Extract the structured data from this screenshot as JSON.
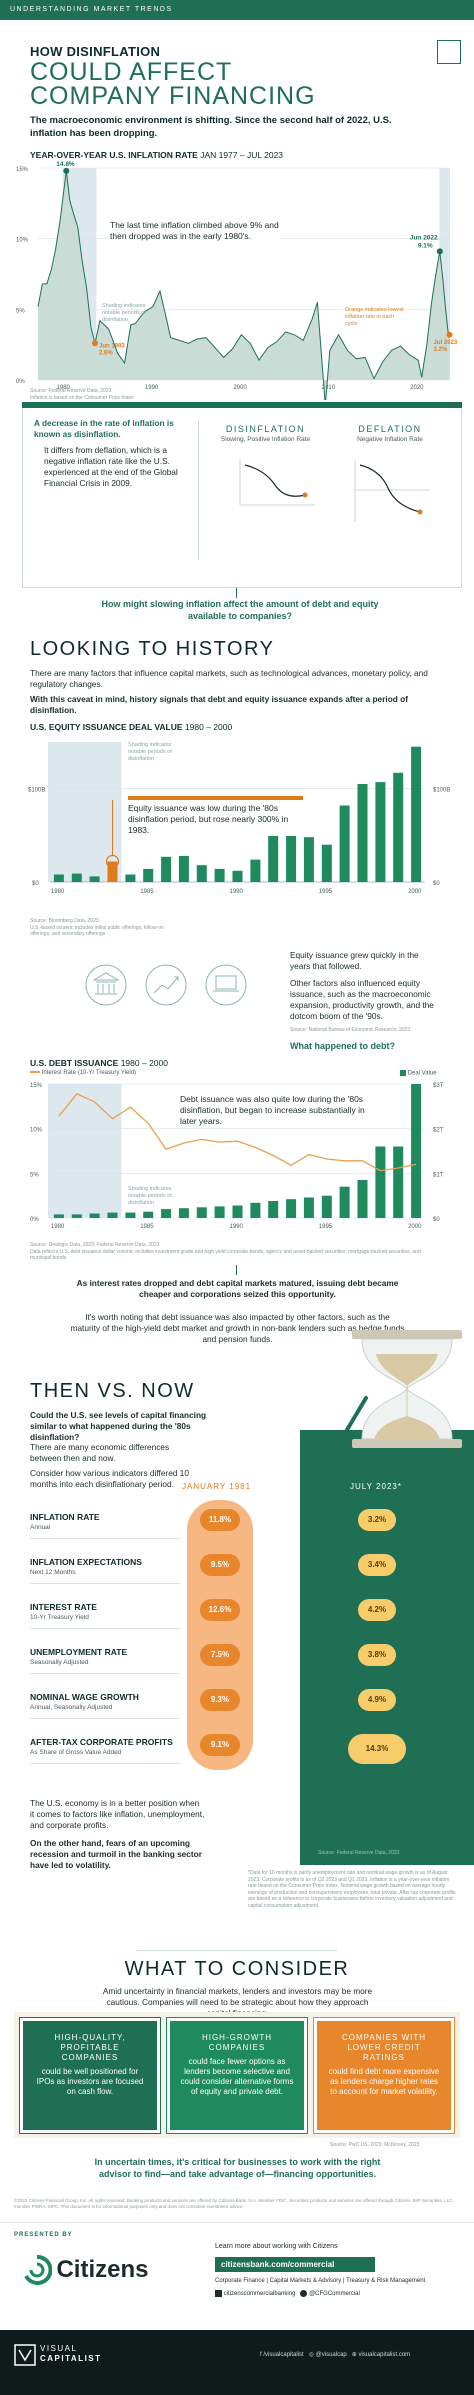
{
  "topbar": "UNDERSTANDING MARKET TRENDS",
  "hero": {
    "line1": "HOW DISINFLATION",
    "line2": "COULD AFFECT",
    "line3": "COMPANY FINANCING",
    "intro": "The macroeconomic environment is shifting. Since the second half of 2022, U.S. inflation has been dropping."
  },
  "inflation_chart": {
    "title": "YEAR-OVER-YEAR U.S. INFLATION RATE",
    "range": "JAN 1977 – JUL 2023",
    "y_ticks": [
      "15%",
      "10%",
      "5%",
      "0%"
    ],
    "x_ticks": [
      "1980",
      "1990",
      "2000",
      "2010",
      "2020"
    ],
    "mar1980_date": "Mar 1980",
    "mar1980_val": "14.8%",
    "jun1983_date": "Jun 1983",
    "jun1983_val": "2.6%",
    "jun2022_date": "Jun 2022",
    "jun2022_val": "9.1%",
    "jul2023_date": "Jul 2023",
    "jul2023_val": "3.2%",
    "callout": "The last time inflation climbed above 9% and then dropped was in the early 1980's.",
    "shade_note": "Shading indicates notable periods of disinflation",
    "orange_note": "Orange indicates lowest inflation rate in each cycle",
    "source": "Source: Federal Reserve Data, 2023",
    "source2": "Inflation is based on the Consumer Price Index"
  },
  "definition": {
    "lead": "A decrease in the rate of inflation is known as disinflation.",
    "body": "It differs from deflation, which is a negative inflation rate like the U.S. experienced at the end of the Global Financial Crisis in 2009.",
    "disinflation_label": "DISINFLATION",
    "disinflation_sub": "Slowing, Positive Inflation Rate",
    "deflation_label": "DEFLATION",
    "deflation_sub": "Negative Inflation Rate"
  },
  "question1": "How might slowing inflation affect the amount of debt and equity available to companies?",
  "history": {
    "title": "LOOKING TO HISTORY",
    "p1": "There are many factors that influence capital markets, such as technological advances, monetary policy, and regulatory changes.",
    "p2": "With this caveat in mind, history signals that debt and equity issuance expands after a period of disinflation."
  },
  "equity_chart": {
    "title": "U.S. EQUITY ISSUANCE DEAL VALUE",
    "range": "1980 – 2000",
    "y_left": [
      "$100B",
      "$0"
    ],
    "y_right": [
      "$100B",
      "$0"
    ],
    "x_ticks": [
      "1980",
      "1985",
      "1990",
      "1995",
      "2000"
    ],
    "shade_note": "Shading indicates notable periods of disinflation",
    "callout": "Equity issuance was low during the '80s disinflation period, but rose nearly 300% in 1983.",
    "source": "Source: Bloomberg Data, 2023",
    "source2": "U.S.-based issuers; includes initial public offerings, follow-on offerings, and secondary offerings",
    "values": [
      8,
      9,
      6,
      22,
      8,
      14,
      27,
      28,
      18,
      14,
      12,
      24,
      55,
      67,
      48,
      40,
      82,
      105,
      107,
      117,
      145
    ]
  },
  "equity_side": {
    "p1": "Equity issuance grew quickly in the years that followed.",
    "p2": "Other factors also influenced equity issuance, such as the macroeconomic expansion, productivity growth, and the dotcom boom of the '90s.",
    "source": "Source: National Bureau of Economic Research, 2023",
    "question": "What happened to debt?"
  },
  "debt_chart": {
    "title": "U.S. DEBT ISSUANCE",
    "range": "1980 – 2000",
    "legend_line": "Interest Rate (10-Yr Treasury Yield)",
    "legend_bar": "Deal Value",
    "y_left": [
      "15%",
      "10%",
      "5%",
      "0%"
    ],
    "y_right": [
      "$3T",
      "$2T",
      "$1T",
      "$0"
    ],
    "x_ticks": [
      "1980",
      "1985",
      "1990",
      "1995",
      "2000"
    ],
    "callout": "Debt issuance was also quite low during the '80s disinflation, but began to increase substantially in later years.",
    "shade_note": "Shading indicates notable periods of disinflation",
    "source": "Source: Dealogic Data, 2023; Federal Reserve Data, 2023",
    "source2": "Data reflects U.S. debt issuance dollar volume; includes investment grade and high yield corporate bonds, agency and asset-backed securities, mortgage-backed securities, and municipal bonds",
    "bars": [
      0.08,
      0.08,
      0.1,
      0.12,
      0.12,
      0.14,
      0.2,
      0.22,
      0.24,
      0.26,
      0.28,
      0.34,
      0.38,
      0.42,
      0.46,
      0.5,
      0.7,
      0.85,
      1.6,
      1.6,
      3.0
    ],
    "rates": [
      11.4,
      13.9,
      13.0,
      11.1,
      12.4,
      10.6,
      7.7,
      8.4,
      8.8,
      8.5,
      8.6,
      7.9,
      7.0,
      5.9,
      7.1,
      6.6,
      6.4,
      6.4,
      5.3,
      5.6,
      6.0
    ]
  },
  "debt_note": {
    "lead": "As interest rates dropped and debt capital markets matured, issuing debt became cheaper and corporations seized this opportunity.",
    "body": "It's worth noting that debt issuance was also impacted by other factors, such as the maturity of the high-yield debt market and growth in non-bank lenders such as hedge funds and pension funds."
  },
  "then_now": {
    "title": "THEN VS. NOW",
    "q": "Could the U.S. see levels of capital financing similar to what happened during the '80s disinflation?",
    "p1": "There are many economic differences between then and now.",
    "p2": "Consider how various indicators differed 10 months into each disinflationary period.",
    "col1": "JANUARY 1981",
    "col2": "JULY 2023*",
    "indicators": [
      {
        "name": "INFLATION RATE",
        "sub": "Annual",
        "then": "11.8%",
        "now": "3.2%"
      },
      {
        "name": "INFLATION EXPECTATIONS",
        "sub": "Next 12 Months",
        "then": "9.5%",
        "now": "3.4%"
      },
      {
        "name": "INTEREST RATE",
        "sub": "10-Yr Treasury Yield",
        "then": "12.6%",
        "now": "4.2%"
      },
      {
        "name": "UNEMPLOYMENT RATE",
        "sub": "Seasonally Adjusted",
        "then": "7.5%",
        "now": "3.8%"
      },
      {
        "name": "NOMINAL WAGE GROWTH",
        "sub": "Annual, Seasonally Adjusted",
        "then": "9.3%",
        "now": "4.9%"
      },
      {
        "name": "AFTER-TAX CORPORATE PROFITS",
        "sub": "As Share of Gross Value Added",
        "then": "9.1%",
        "now": "14.3%"
      }
    ],
    "source": "Source: Federal Reserve Data, 2023",
    "p3": "The U.S. economy is in a better position when it comes to factors like inflation, unemployment, and corporate profits.",
    "p4": "On the other hand, fears of an upcoming recession and turmoil in the banking sector have led to volatility.",
    "footnote": "*Data for 10 months is partly unemployment rate and nominal wage growth is as of August 2023. Corporate profits is as of Q2 2023 and Q1 2023. Inflation is a year-over-year inflation rate based on the Consumer Price Index. Nominal wage growth based on average hourly earnings of production and nonsupervisory employees, total private. After-tax corporate profits are based on a reference to corporate businesses before inventory valuation adjustment and capital consumption adjustment."
  },
  "consider": {
    "title": "WHAT TO CONSIDER",
    "intro": "Amid uncertainty in financial markets, lenders and investors may be more cautious. Companies will need to be strategic about how they approach capital financing.",
    "cards": [
      {
        "title": "HIGH-QUALITY, PROFITABLE COMPANIES",
        "body": "could be well positioned for IPOs as investors are focused on cash flow."
      },
      {
        "title": "HIGH-GROWTH COMPANIES",
        "body": "could face fewer options as lenders become selective and could consider alternative forms of equity and private debt."
      },
      {
        "title": "COMPANIES WITH LOWER CREDIT RATINGS",
        "body": "could find debt more expensive as lenders charge higher rates to account for market volatility."
      }
    ],
    "source": "Source: PwC US, 2023; McKinsey, 2023",
    "closing": "In uncertain times, it's critical for businesses to work with the right advisor to find—and take advantage of—financing opportunities."
  },
  "legal": "©2023 Citizens Financial Group, Inc. All rights reserved. Banking products and services are offered by Citizens Bank, N.A. Member FDIC. Securities products and services are offered through Citizens JMP Securities, LLC, member FINRA, SIPC. This document is for informational purposes only and does not constitute investment advice.",
  "footer": {
    "presented_by": "PRESENTED BY",
    "brand": "Citizens",
    "learn": "Learn more about working with Citizens",
    "url": "citizensbank.com/commercial",
    "tagline": "Corporate Finance | Capital Markets & Advisory | Treasury & Risk Management",
    "linkedin": "citizenscommercialbanking",
    "twitter": "@CFGCommercial",
    "vc_line1": "VISUAL",
    "vc_line2": "CAPITALIST",
    "social1": "/visualcapitalist",
    "social2": "@visualcap",
    "social3": "visualcapitalist.com"
  }
}
